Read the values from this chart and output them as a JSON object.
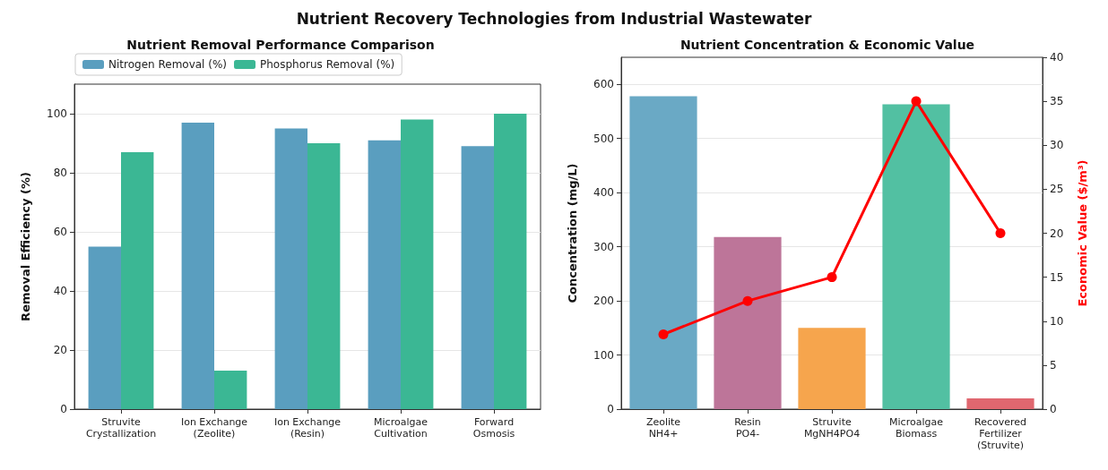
{
  "chart_data": [
    {
      "type": "bar",
      "title": "Nutrient Removal Performance Comparison",
      "ylabel": "Removal Efficiency (%)",
      "annotations": [
        "Nutrient Recovery Technologies from Industrial Wastewater"
      ],
      "categories": [
        "Struvite\nCrystallization",
        "Ion Exchange\n(Zeolite)",
        "Ion Exchange\n(Resin)",
        "Microalgae\nCultivation",
        "Forward\nOsmosis"
      ],
      "series": [
        {
          "name": "Nitrogen Removal (%)",
          "color": "#5a9ebf",
          "values": [
            55,
            97,
            95,
            91,
            89
          ]
        },
        {
          "name": "Phosphorus Removal (%)",
          "color": "#3bb794",
          "values": [
            87,
            13,
            90,
            98,
            100
          ]
        }
      ],
      "ylim": [
        0,
        110
      ],
      "yticks": [
        0,
        20,
        40,
        60,
        80,
        100
      ],
      "grid": "y",
      "legend": "top left"
    },
    {
      "type": "bar",
      "title": "Nutrient Concentration & Economic Value",
      "ylabel": "Concentration (mg/L)",
      "y2label": "Economic Value ($/m³)",
      "categories": [
        "Zeolite\nNH4+",
        "Resin\nPO4-",
        "Struvite\nMgNH4PO4",
        "Microalgae\nBiomass",
        "Recovered\nFertilizer\n(Struvite)"
      ],
      "series": [
        {
          "colors": [
            "#6aa9c5",
            "#bd7599",
            "#f6a54d",
            "#52c0a2",
            "#e0676f"
          ],
          "values": [
            578,
            318,
            150,
            563,
            20
          ]
        },
        {
          "type": "line",
          "axis": "y2",
          "color": "#ff0000",
          "values": [
            8.5,
            12.3,
            15,
            35,
            20
          ]
        }
      ],
      "ylim": [
        0,
        650
      ],
      "yticks": [
        0,
        100,
        200,
        300,
        400,
        500,
        600
      ],
      "y2lim": [
        0,
        40
      ],
      "y2ticks": [
        0,
        5,
        10,
        15,
        20,
        25,
        30,
        35,
        40
      ],
      "grid": "y",
      "marker": "circle"
    }
  ]
}
